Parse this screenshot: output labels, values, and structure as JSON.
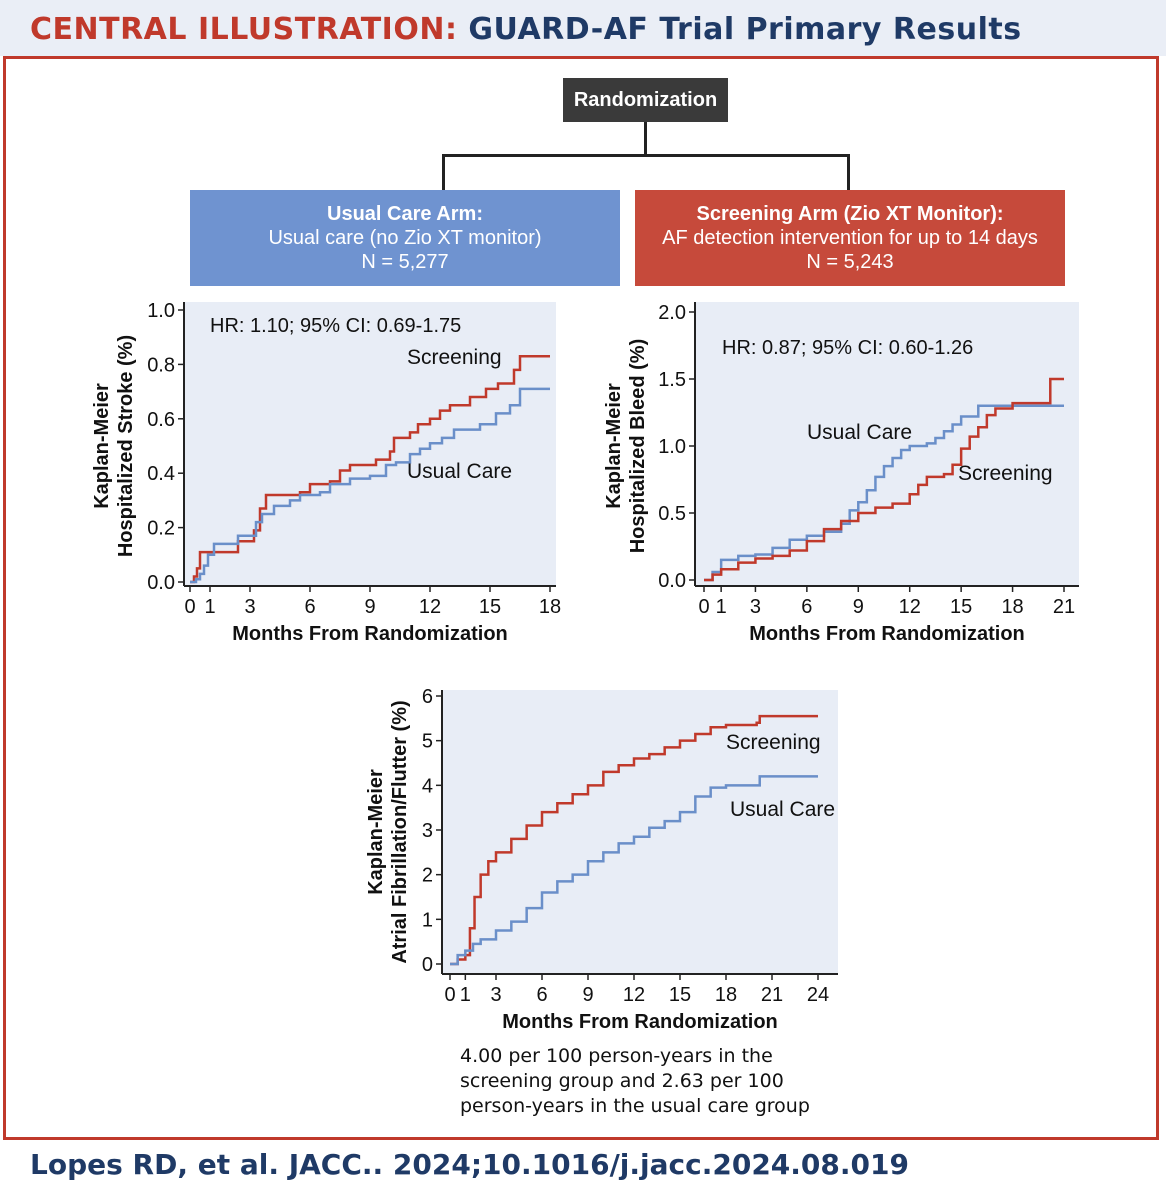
{
  "header": {
    "label_red": "CENTRAL ILLUSTRATION:",
    "label_blue": "GUARD-AF Trial Primary Results"
  },
  "randomization": {
    "label": "Randomization"
  },
  "arms": {
    "usual": {
      "title": "Usual Care Arm:",
      "desc": "Usual care (no Zio XT monitor)",
      "n": "N = 5,277"
    },
    "screening": {
      "title": "Screening Arm (Zio XT Monitor):",
      "desc": "AF detection intervention for up to 14 days",
      "n": "N = 5,243"
    }
  },
  "colors": {
    "screening": "#c0392b",
    "usual": "#6a8fc9",
    "plot_bg": "#e8edf6",
    "accent": "#c0392b",
    "navy": "#1f3a66"
  },
  "chart_data": [
    {
      "type": "line",
      "id": "stroke",
      "ylabel": [
        "Kaplan-Meier",
        "Hospitalized Stroke (%)"
      ],
      "xlabel": "Months From Randomization",
      "annotation": "HR: 1.10; 95% CI: 0.69-1.75",
      "xlim": [
        0,
        18
      ],
      "ylim": [
        0,
        1.0
      ],
      "xticks": [
        0,
        1,
        3,
        6,
        9,
        12,
        15,
        18
      ],
      "yticks": [
        0.0,
        0.2,
        0.4,
        0.6,
        0.8,
        1.0
      ],
      "ytick_labels": [
        "0.0",
        "0.2",
        "0.4",
        "0.6",
        "0.8",
        "1.0"
      ],
      "series": [
        {
          "name": "Screening",
          "label": "Screening",
          "color": "#c0392b",
          "points": [
            [
              0,
              0
            ],
            [
              0.2,
              0.02
            ],
            [
              0.35,
              0.05
            ],
            [
              0.5,
              0.11
            ],
            [
              1.5,
              0.11
            ],
            [
              2.4,
              0.15
            ],
            [
              3.2,
              0.19
            ],
            [
              3.5,
              0.27
            ],
            [
              3.8,
              0.32
            ],
            [
              5.5,
              0.33
            ],
            [
              6,
              0.36
            ],
            [
              7,
              0.37
            ],
            [
              7.5,
              0.41
            ],
            [
              8,
              0.43
            ],
            [
              9,
              0.43
            ],
            [
              9.3,
              0.45
            ],
            [
              10,
              0.48
            ],
            [
              10.2,
              0.53
            ],
            [
              11,
              0.55
            ],
            [
              11.4,
              0.58
            ],
            [
              12,
              0.6
            ],
            [
              12.5,
              0.63
            ],
            [
              13,
              0.65
            ],
            [
              14,
              0.68
            ],
            [
              14.8,
              0.71
            ],
            [
              15.4,
              0.73
            ],
            [
              16.2,
              0.78
            ],
            [
              16.5,
              0.83
            ],
            [
              18,
              0.83
            ]
          ]
        },
        {
          "name": "Usual Care",
          "label": "Usual Care",
          "color": "#6a8fc9",
          "points": [
            [
              0,
              0
            ],
            [
              0.3,
              0.01
            ],
            [
              0.5,
              0.03
            ],
            [
              0.7,
              0.06
            ],
            [
              0.9,
              0.1
            ],
            [
              1.2,
              0.14
            ],
            [
              2.4,
              0.17
            ],
            [
              3.3,
              0.22
            ],
            [
              3.6,
              0.25
            ],
            [
              4.2,
              0.28
            ],
            [
              5,
              0.3
            ],
            [
              5.5,
              0.32
            ],
            [
              6.5,
              0.33
            ],
            [
              7,
              0.36
            ],
            [
              8,
              0.38
            ],
            [
              9,
              0.39
            ],
            [
              9.8,
              0.43
            ],
            [
              10.3,
              0.44
            ],
            [
              11,
              0.47
            ],
            [
              11.5,
              0.49
            ],
            [
              12,
              0.51
            ],
            [
              12.6,
              0.53
            ],
            [
              13.2,
              0.56
            ],
            [
              14,
              0.56
            ],
            [
              14.5,
              0.58
            ],
            [
              15.3,
              0.62
            ],
            [
              16,
              0.65
            ],
            [
              16.5,
              0.71
            ],
            [
              18,
              0.71
            ]
          ]
        }
      ]
    },
    {
      "type": "line",
      "id": "bleed",
      "ylabel": [
        "Kaplan-Meier",
        "Hospitalized Bleed (%)"
      ],
      "xlabel": "Months From Randomization",
      "annotation": "HR: 0.87; 95% CI: 0.60-1.26",
      "xlim": [
        0,
        21
      ],
      "ylim": [
        0,
        2.0
      ],
      "xticks": [
        0,
        1,
        3,
        6,
        9,
        12,
        15,
        18,
        21
      ],
      "yticks": [
        0.0,
        0.5,
        1.0,
        1.5,
        2.0
      ],
      "ytick_labels": [
        "0.0",
        "0.5",
        "1.0",
        "1.5",
        "2.0"
      ],
      "series": [
        {
          "name": "Usual Care",
          "label": "Usual Care",
          "color": "#6a8fc9",
          "points": [
            [
              0,
              0
            ],
            [
              0.5,
              0.06
            ],
            [
              1,
              0.15
            ],
            [
              2,
              0.18
            ],
            [
              3,
              0.19
            ],
            [
              4,
              0.24
            ],
            [
              5,
              0.3
            ],
            [
              6,
              0.33
            ],
            [
              7,
              0.36
            ],
            [
              8,
              0.42
            ],
            [
              8.5,
              0.52
            ],
            [
              9,
              0.58
            ],
            [
              9.5,
              0.67
            ],
            [
              10,
              0.77
            ],
            [
              10.5,
              0.85
            ],
            [
              11,
              0.91
            ],
            [
              11.5,
              0.97
            ],
            [
              12,
              1.0
            ],
            [
              13,
              1.02
            ],
            [
              13.5,
              1.06
            ],
            [
              14,
              1.11
            ],
            [
              14.5,
              1.16
            ],
            [
              15,
              1.22
            ],
            [
              16,
              1.3
            ],
            [
              18,
              1.3
            ],
            [
              21,
              1.3
            ]
          ]
        },
        {
          "name": "Screening",
          "label": "Screening",
          "color": "#c0392b",
          "points": [
            [
              0,
              0
            ],
            [
              0.5,
              0.04
            ],
            [
              1,
              0.08
            ],
            [
              2,
              0.13
            ],
            [
              3,
              0.16
            ],
            [
              4,
              0.18
            ],
            [
              5,
              0.22
            ],
            [
              6,
              0.29
            ],
            [
              7,
              0.38
            ],
            [
              8,
              0.44
            ],
            [
              9,
              0.5
            ],
            [
              10,
              0.54
            ],
            [
              11,
              0.57
            ],
            [
              12,
              0.64
            ],
            [
              12.5,
              0.71
            ],
            [
              13,
              0.77
            ],
            [
              14,
              0.79
            ],
            [
              14.5,
              0.86
            ],
            [
              15,
              0.98
            ],
            [
              15.5,
              1.07
            ],
            [
              16,
              1.14
            ],
            [
              16.5,
              1.23
            ],
            [
              17,
              1.28
            ],
            [
              18,
              1.32
            ],
            [
              20,
              1.32
            ],
            [
              20.2,
              1.5
            ],
            [
              21,
              1.5
            ]
          ]
        }
      ]
    },
    {
      "type": "line",
      "id": "af",
      "ylabel": [
        "Kaplan-Meier",
        "Atrial Fibrillation/Flutter (%)"
      ],
      "xlabel": "Months From Randomization",
      "xlim": [
        0,
        24
      ],
      "ylim": [
        0,
        6
      ],
      "xticks": [
        0,
        1,
        3,
        6,
        9,
        12,
        15,
        18,
        21,
        24
      ],
      "yticks": [
        0,
        1,
        2,
        3,
        4,
        5,
        6
      ],
      "ytick_labels": [
        "0",
        "1",
        "2",
        "3",
        "4",
        "5",
        "6"
      ],
      "series": [
        {
          "name": "Screening",
          "label": "Screening",
          "color": "#c0392b",
          "points": [
            [
              0,
              0
            ],
            [
              0.5,
              0.1
            ],
            [
              1,
              0.2
            ],
            [
              1.3,
              0.8
            ],
            [
              1.6,
              1.5
            ],
            [
              2,
              2.0
            ],
            [
              2.5,
              2.3
            ],
            [
              3,
              2.5
            ],
            [
              4,
              2.8
            ],
            [
              5,
              3.1
            ],
            [
              6,
              3.4
            ],
            [
              7,
              3.6
            ],
            [
              8,
              3.8
            ],
            [
              9,
              4.0
            ],
            [
              10,
              4.3
            ],
            [
              11,
              4.45
            ],
            [
              12,
              4.6
            ],
            [
              13,
              4.7
            ],
            [
              14,
              4.85
            ],
            [
              15,
              5.0
            ],
            [
              16,
              5.15
            ],
            [
              17,
              5.3
            ],
            [
              18,
              5.35
            ],
            [
              20,
              5.4
            ],
            [
              20.2,
              5.55
            ],
            [
              24,
              5.55
            ]
          ]
        },
        {
          "name": "Usual Care",
          "label": "Usual Care",
          "color": "#6a8fc9",
          "points": [
            [
              0,
              0
            ],
            [
              0.5,
              0.2
            ],
            [
              1,
              0.3
            ],
            [
              1.5,
              0.45
            ],
            [
              2,
              0.55
            ],
            [
              3,
              0.75
            ],
            [
              4,
              0.95
            ],
            [
              5,
              1.25
            ],
            [
              6,
              1.6
            ],
            [
              7,
              1.85
            ],
            [
              8,
              2.0
            ],
            [
              9,
              2.3
            ],
            [
              10,
              2.5
            ],
            [
              11,
              2.7
            ],
            [
              12,
              2.85
            ],
            [
              13,
              3.05
            ],
            [
              14,
              3.2
            ],
            [
              15,
              3.4
            ],
            [
              16,
              3.75
            ],
            [
              17,
              3.95
            ],
            [
              18,
              4.0
            ],
            [
              20,
              4.0
            ],
            [
              20.2,
              4.2
            ],
            [
              24,
              4.2
            ]
          ]
        }
      ]
    }
  ],
  "note": {
    "text": "4.00 per 100 person-years in the screening group and 2.63 per 100 person-years in the usual care group"
  },
  "footer": {
    "citation": "Lopes RD, et al. JACC.. 2024;10.1016/j.jacc.2024.08.019"
  }
}
